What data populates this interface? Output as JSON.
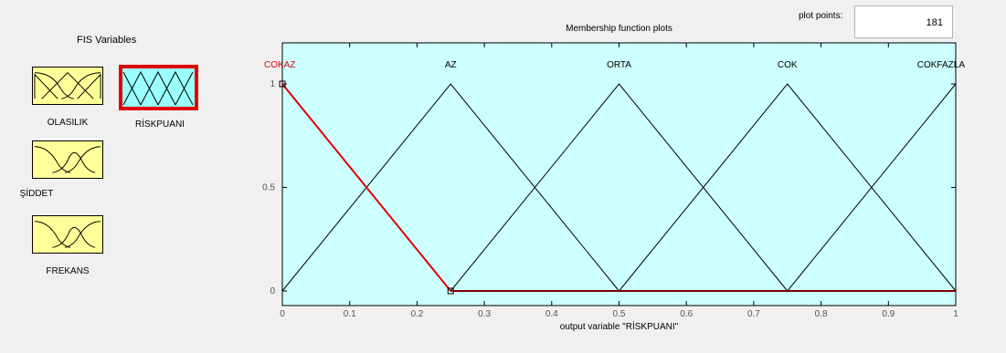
{
  "fis_variables": {
    "title": "FIS Variables",
    "items": [
      {
        "name": "OLASILIK",
        "selected": false
      },
      {
        "name": "RİSKPUANI",
        "selected": true
      },
      {
        "name": "ŞİDDET",
        "selected": false
      },
      {
        "name": "FREKANS",
        "selected": false
      }
    ]
  },
  "plot_points": {
    "label": "plot points:",
    "value": "181"
  },
  "colors": {
    "input_icon_fill": "#ffff99",
    "output_icon_fill": "#99ffff",
    "selection": "#e00000",
    "plot_background": "#ccffff"
  },
  "chart_data": {
    "type": "line",
    "title": "Membership function plots",
    "xlabel": "output variable \"RİSKPUANI\"",
    "ylabel": "",
    "xlim": [
      0,
      1
    ],
    "ylim": [
      0,
      1
    ],
    "xticks": [
      "0",
      "0.1",
      "0.2",
      "0.3",
      "0.4",
      "0.5",
      "0.6",
      "0.7",
      "0.8",
      "0.9",
      "1"
    ],
    "yticks": [
      "0",
      "0.5",
      "1"
    ],
    "grid": false,
    "series": [
      {
        "name": "COKAZ",
        "x": [
          0,
          0,
          0.25
        ],
        "y": [
          1,
          1,
          0
        ],
        "highlighted": true
      },
      {
        "name": "AZ",
        "x": [
          0,
          0.25,
          0.5
        ],
        "y": [
          0,
          1,
          0
        ],
        "highlighted": false
      },
      {
        "name": "ORTA",
        "x": [
          0.25,
          0.5,
          0.75
        ],
        "y": [
          0,
          1,
          0
        ],
        "highlighted": false
      },
      {
        "name": "COK",
        "x": [
          0.5,
          0.75,
          1
        ],
        "y": [
          0,
          1,
          0
        ],
        "highlighted": false
      },
      {
        "name": "COKFAZLA",
        "x": [
          0.75,
          1,
          1
        ],
        "y": [
          0,
          1,
          1
        ],
        "highlighted": false
      }
    ]
  }
}
